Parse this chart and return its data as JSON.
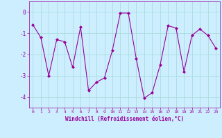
{
  "x": [
    0,
    1,
    2,
    3,
    4,
    5,
    6,
    7,
    8,
    9,
    10,
    11,
    12,
    13,
    14,
    15,
    16,
    17,
    18,
    19,
    20,
    21,
    22,
    23
  ],
  "y": [
    -0.6,
    -1.2,
    -3.0,
    -1.3,
    -1.4,
    -2.6,
    -0.7,
    -3.7,
    -3.3,
    -3.1,
    -1.8,
    -0.05,
    -0.05,
    -2.2,
    -4.05,
    -3.8,
    -2.5,
    -0.65,
    -0.75,
    -2.8,
    -1.1,
    -0.8,
    -1.1,
    -1.7
  ],
  "line_color": "#990099",
  "marker": "D",
  "marker_size": 2,
  "bg_color": "#cceeff",
  "grid_color": "#aadddd",
  "xlabel": "Windchill (Refroidissement éolien,°C)",
  "ylim": [
    -4.5,
    0.5
  ],
  "xlim": [
    -0.5,
    23.5
  ],
  "yticks": [
    0,
    -1,
    -2,
    -3,
    -4
  ],
  "ytick_labels": [
    "0",
    "-1",
    "-2",
    "-3",
    "-4"
  ],
  "xticks": [
    0,
    1,
    2,
    3,
    4,
    5,
    6,
    7,
    8,
    9,
    10,
    11,
    12,
    13,
    14,
    15,
    16,
    17,
    18,
    19,
    20,
    21,
    22,
    23
  ]
}
